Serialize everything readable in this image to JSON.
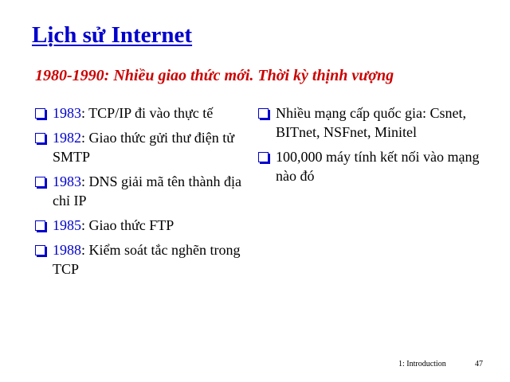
{
  "title": "Lịch sử Internet",
  "subtitle": "1980-1990: Nhiều giao thức mới. Thời kỳ thịnh vượng",
  "left_items": [
    {
      "year": "1983",
      "text": ": TCP/IP đi vào thực tế"
    },
    {
      "year": "1982",
      "text": ": Giao thức gửi thư điện tử SMTP"
    },
    {
      "year": "1983",
      "text": ": DNS giải mã tên thành địa chỉ IP"
    },
    {
      "year": "1985",
      "text": ": Giao thức FTP"
    },
    {
      "year": "1988",
      "text": ": Kiểm soát tắc nghẽn trong TCP"
    }
  ],
  "right_items": [
    {
      "text": "Nhiều mạng cấp quốc gia: Csnet, BITnet, NSFnet, Minitel"
    },
    {
      "text": "100,000 máy tính kết nối vào mạng nào đó"
    }
  ],
  "footer": {
    "label": "1: Introduction",
    "page": "47"
  },
  "colors": {
    "title": "#0000cc",
    "subtitle": "#cc0000",
    "year": "#0000cc",
    "bullet": "#0000cc"
  },
  "icons": {
    "bullet": "checkbox-bullet-icon"
  }
}
